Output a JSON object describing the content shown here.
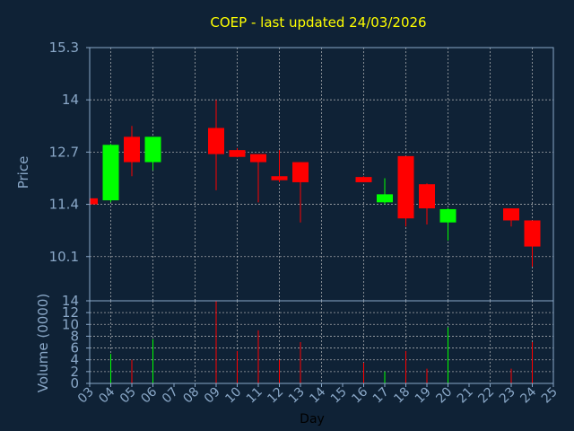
{
  "chart_data": {
    "type": "candlestick",
    "title": "COEP - last updated 24/03/2026",
    "xlabel": "Day",
    "colors": {
      "background": "#0f2236",
      "frame": "#8aa8c8",
      "grid": "#c8c8c8",
      "up": "#00ff00",
      "down": "#ff0000",
      "title": "#ffff00",
      "axis_text": "#8aa8c8"
    },
    "grid": true,
    "x_ticks": [
      "03",
      "04",
      "05",
      "06",
      "07",
      "08",
      "09",
      "10",
      "11",
      "12",
      "13",
      "14",
      "15",
      "16",
      "17",
      "18",
      "19",
      "20",
      "21",
      "22",
      "23",
      "24",
      "25"
    ],
    "price_panel": {
      "ylabel": "Price",
      "ylim": [
        9.0,
        15.3
      ],
      "yticks": [
        "15.3",
        "14",
        "12.7",
        "11.4",
        "10.1"
      ],
      "ytick_values": [
        15.3,
        14.0,
        12.7,
        11.4,
        10.1
      ]
    },
    "volume_panel": {
      "ylabel": "Volume (0000)",
      "ylim": [
        0,
        14
      ],
      "yticks": [
        "14",
        "12",
        "10",
        "8",
        "6",
        "4",
        "2",
        "0"
      ],
      "ytick_values": [
        14,
        12,
        10,
        8,
        6,
        4,
        2,
        0
      ]
    },
    "candles": [
      {
        "day": 3.0,
        "open": 11.55,
        "high": 11.57,
        "low": 11.38,
        "close": 11.4,
        "volume": 0
      },
      {
        "day": 4.0,
        "open": 11.5,
        "high": 12.9,
        "low": 11.45,
        "close": 12.88,
        "volume": 5
      },
      {
        "day": 5.0,
        "open": 13.08,
        "high": 13.35,
        "low": 12.1,
        "close": 12.45,
        "volume": 4
      },
      {
        "day": 6.0,
        "open": 12.45,
        "high": 13.08,
        "low": 12.25,
        "close": 13.08,
        "volume": 7.5
      },
      {
        "day": 9.0,
        "open": 13.3,
        "high": 14.0,
        "low": 11.75,
        "close": 12.65,
        "volume": 14
      },
      {
        "day": 10.0,
        "open": 12.75,
        "high": 12.8,
        "low": 12.57,
        "close": 12.58,
        "volume": 5.5
      },
      {
        "day": 11.0,
        "open": 12.65,
        "high": 12.65,
        "low": 11.45,
        "close": 12.45,
        "volume": 9
      },
      {
        "day": 12.0,
        "open": 12.1,
        "high": 12.75,
        "low": 11.95,
        "close": 12.0,
        "volume": 4
      },
      {
        "day": 13.0,
        "open": 12.45,
        "high": 12.45,
        "low": 10.95,
        "close": 11.95,
        "volume": 7
      },
      {
        "day": 16.0,
        "open": 12.08,
        "high": 12.1,
        "low": 11.95,
        "close": 11.95,
        "volume": 3.5
      },
      {
        "day": 17.0,
        "open": 11.45,
        "high": 12.05,
        "low": 11.4,
        "close": 11.65,
        "volume": 2
      },
      {
        "day": 18.0,
        "open": 12.6,
        "high": 12.6,
        "low": 10.85,
        "close": 11.05,
        "volume": 5.5
      },
      {
        "day": 19.0,
        "open": 11.9,
        "high": 11.92,
        "low": 10.9,
        "close": 11.3,
        "volume": 2.5
      },
      {
        "day": 20.0,
        "open": 10.95,
        "high": 11.3,
        "low": 10.5,
        "close": 11.28,
        "volume": 9.5
      },
      {
        "day": 23.0,
        "open": 11.3,
        "high": 11.3,
        "low": 10.85,
        "close": 11.0,
        "volume": 2.5
      },
      {
        "day": 24.0,
        "open": 11.0,
        "high": 11.0,
        "low": 9.85,
        "close": 10.35,
        "volume": 7
      }
    ]
  }
}
